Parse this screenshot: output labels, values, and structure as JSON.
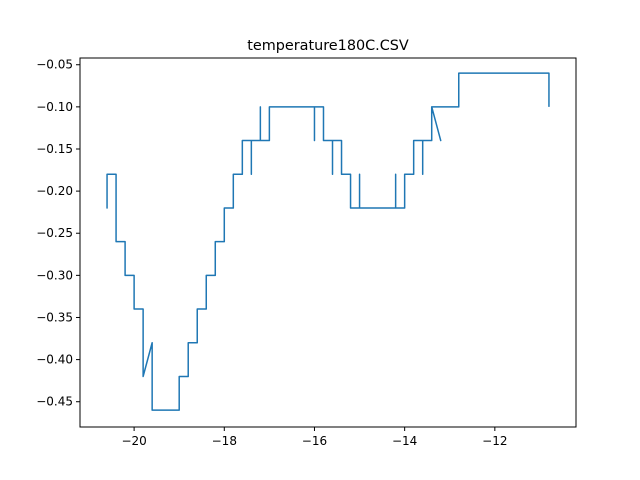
{
  "chart_data": {
    "type": "line",
    "title": "temperature180C.CSV",
    "xlabel": "",
    "ylabel": "",
    "xlim": [
      -21.2,
      -10.2
    ],
    "ylim": [
      -0.48,
      -0.042
    ],
    "xticks": [
      -20,
      -18,
      -16,
      -14,
      -12
    ],
    "yticks": [
      -0.45,
      -0.4,
      -0.35,
      -0.3,
      -0.25,
      -0.2,
      -0.15,
      -0.1,
      -0.05
    ],
    "xtick_labels": [
      "−20",
      "−18",
      "−16",
      "−14",
      "−12"
    ],
    "ytick_labels": [
      "−0.45",
      "−0.40",
      "−0.35",
      "−0.30",
      "−0.25",
      "−0.20",
      "−0.15",
      "−0.10",
      "−0.05"
    ],
    "grid": false,
    "legend": false,
    "series": [
      {
        "color": "#1f77b4",
        "x": [
          -20.6,
          -20.6,
          -20.6,
          -20.6,
          -20.4,
          -20.4,
          -20.2,
          -20.2,
          -20.0,
          -20.0,
          -19.8,
          -19.8,
          -19.6,
          -19.6,
          -19.0,
          -19.0,
          -18.8,
          -18.8,
          -18.6,
          -18.6,
          -18.4,
          -18.4,
          -18.2,
          -18.2,
          -18.0,
          -18.0,
          -17.8,
          -17.8,
          -17.6,
          -17.6,
          -17.6,
          -17.6,
          -17.4,
          -17.4,
          -17.4,
          -17.4,
          -17.2,
          -17.2,
          -17.2,
          -17.2,
          -17.0,
          -17.0,
          -16.0,
          -16.0,
          -16.0,
          -15.8,
          -15.8,
          -15.6,
          -15.6,
          -15.6,
          -15.4,
          -15.4,
          -15.2,
          -15.2,
          -15.0,
          -15.0,
          -15.0,
          -14.2,
          -14.2,
          -14.2,
          -14.0,
          -14.0,
          -13.8,
          -13.8,
          -13.6,
          -13.6,
          -13.6,
          -13.4,
          -13.4,
          -13.2,
          -13.4,
          -12.8,
          -12.8,
          -10.8,
          -10.8
        ],
        "y": [
          -0.22,
          -0.18,
          -0.22,
          -0.18,
          -0.18,
          -0.26,
          -0.26,
          -0.3,
          -0.3,
          -0.34,
          -0.34,
          -0.42,
          -0.38,
          -0.46,
          -0.46,
          -0.42,
          -0.42,
          -0.38,
          -0.38,
          -0.34,
          -0.34,
          -0.3,
          -0.3,
          -0.26,
          -0.26,
          -0.22,
          -0.22,
          -0.18,
          -0.18,
          -0.14,
          -0.18,
          -0.14,
          -0.14,
          -0.18,
          -0.14,
          -0.14,
          -0.14,
          -0.1,
          -0.14,
          -0.14,
          -0.14,
          -0.1,
          -0.1,
          -0.14,
          -0.1,
          -0.1,
          -0.14,
          -0.14,
          -0.18,
          -0.14,
          -0.14,
          -0.18,
          -0.18,
          -0.22,
          -0.22,
          -0.18,
          -0.22,
          -0.22,
          -0.18,
          -0.22,
          -0.22,
          -0.18,
          -0.18,
          -0.14,
          -0.14,
          -0.18,
          -0.14,
          -0.14,
          -0.1,
          -0.14,
          -0.1,
          -0.1,
          -0.06,
          -0.06,
          -0.1
        ]
      }
    ]
  }
}
